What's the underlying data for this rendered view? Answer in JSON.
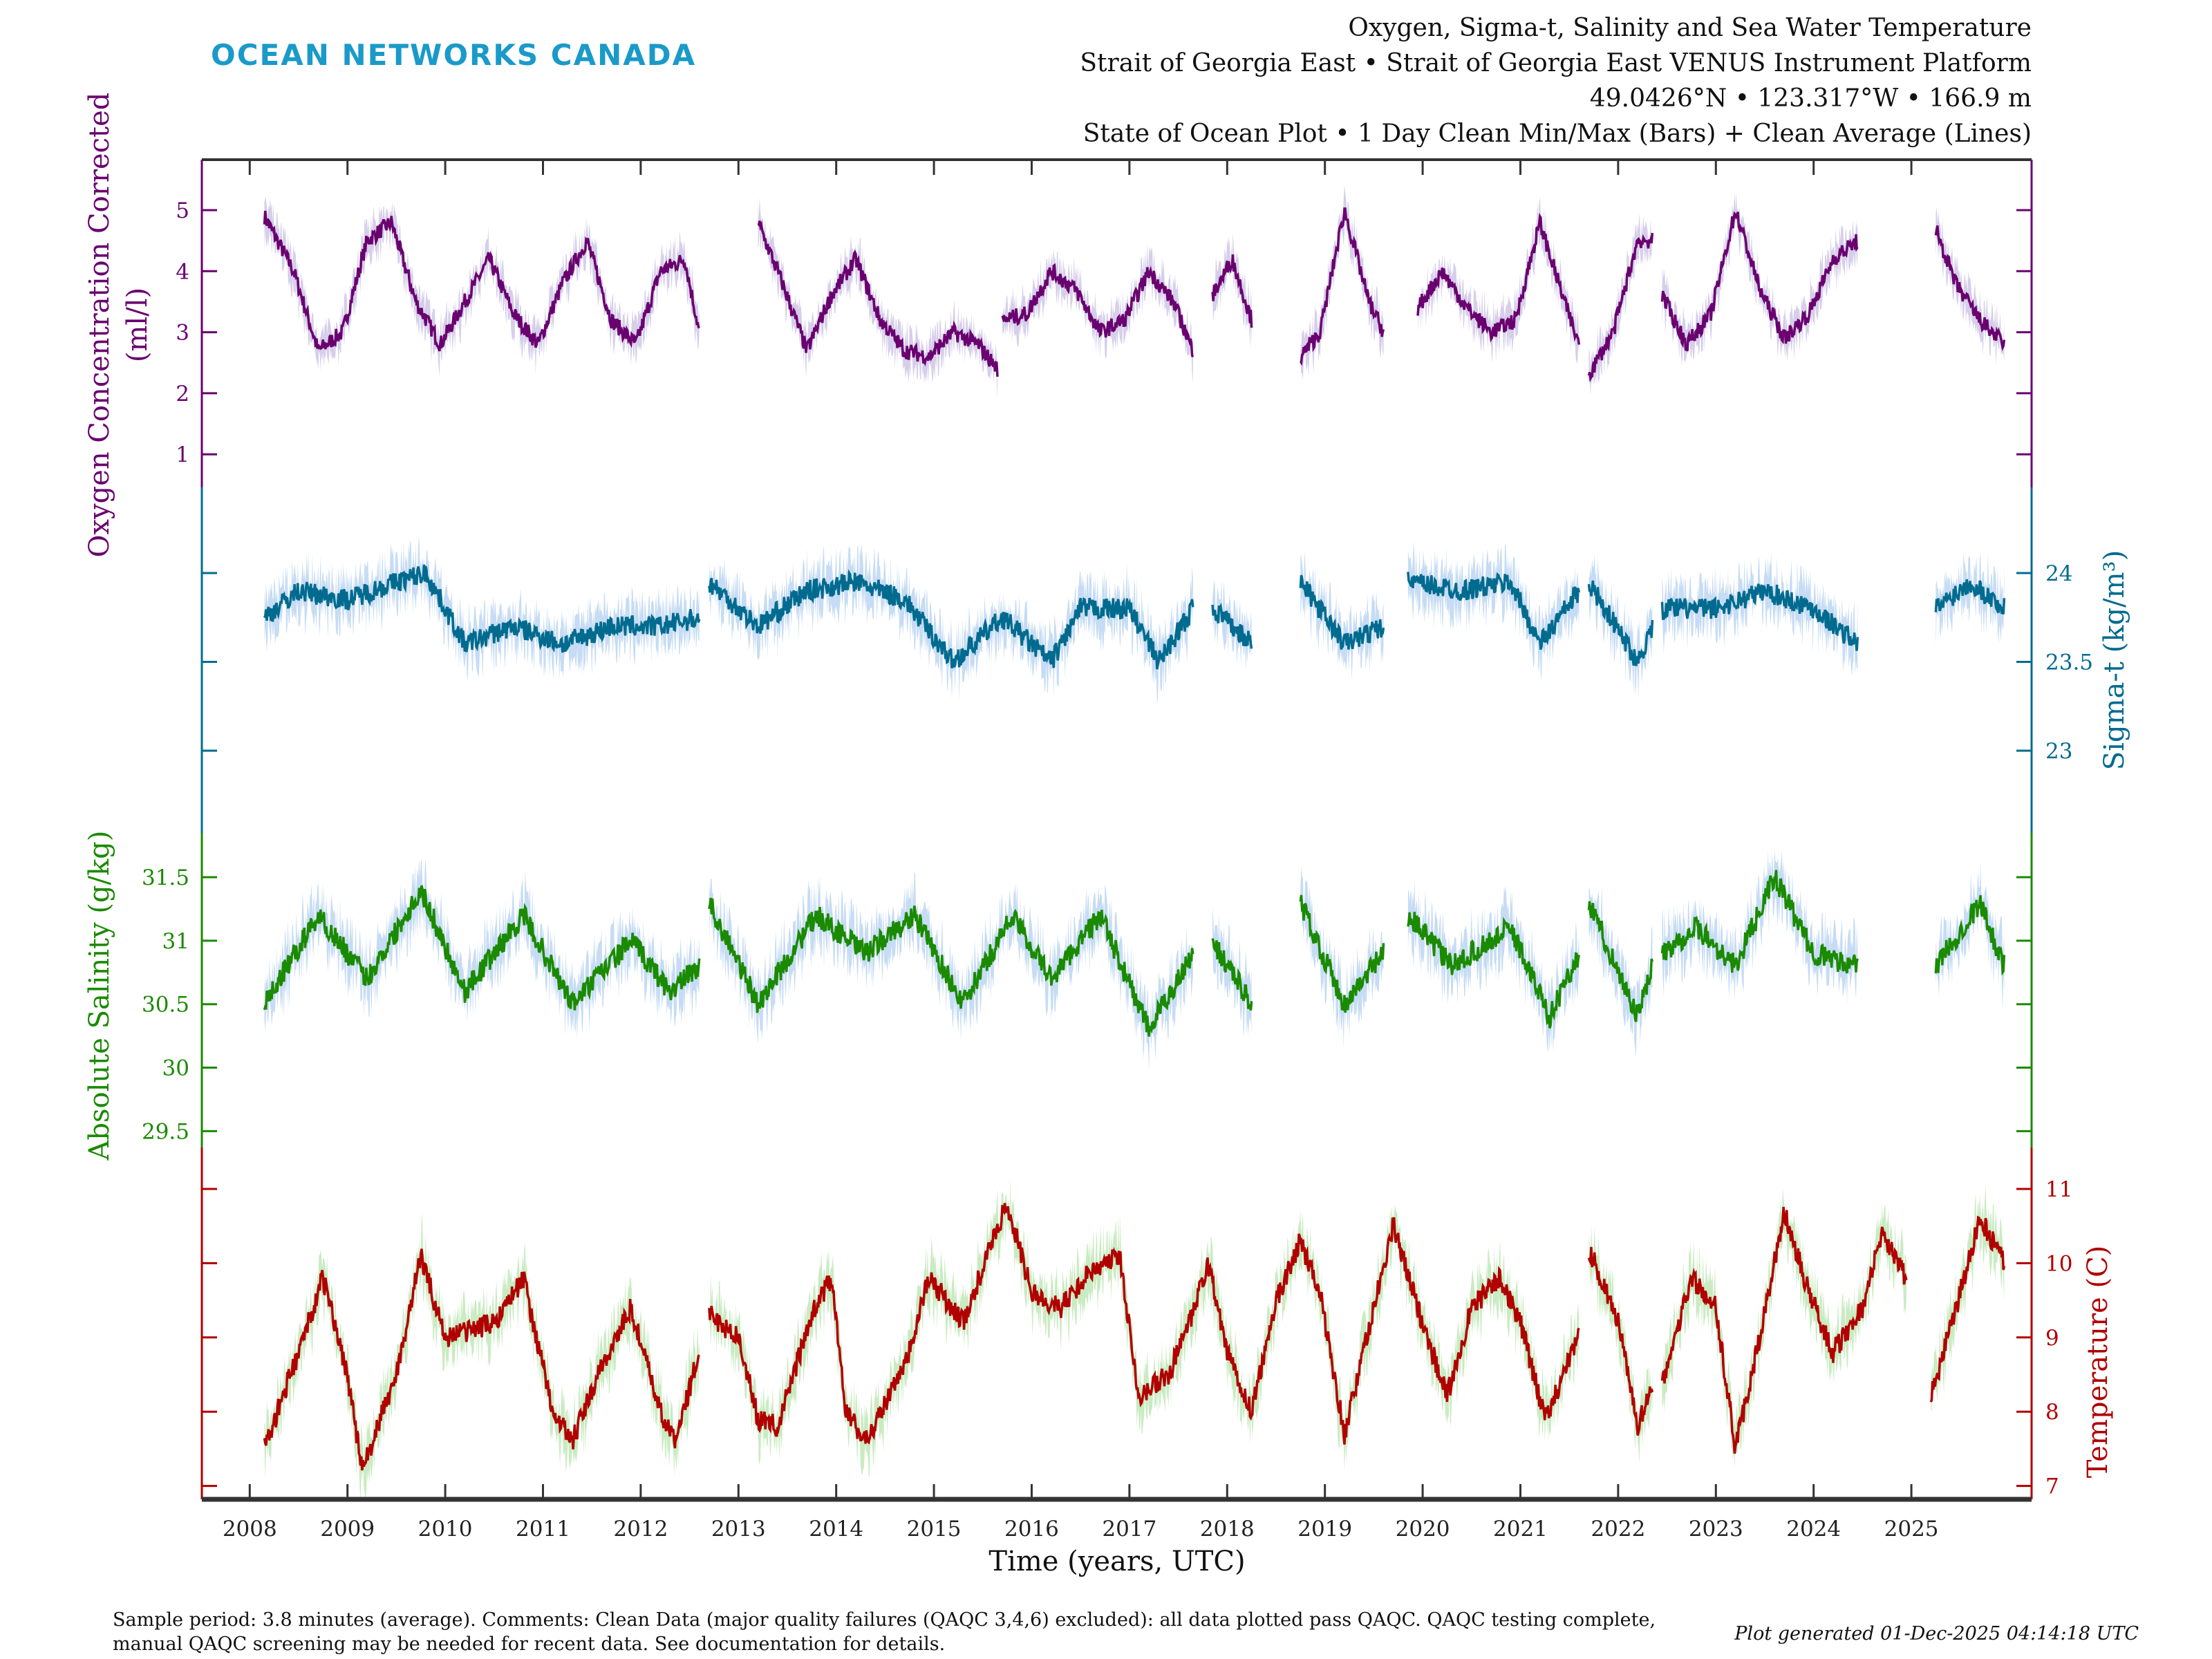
{
  "logo": "OCEAN NETWORKS CANADA",
  "title_lines": [
    "Oxygen, Sigma-t, Salinity and Sea Water Temperature",
    "Strait of Georgia East • Strait of Georgia East VENUS Instrument Platform",
    "49.0426°N • 123.317°W • 166.9 m",
    "State of Ocean Plot • 1 Day Clean Min/Max (Bars) + Clean Average (Lines)"
  ],
  "footer": {
    "line1": "Sample period: 3.8 minutes (average). Comments: Clean Data (major quality failures (QAQC 3,4,6) excluded): all data plotted pass QAQC. QAQC testing complete,",
    "line2": "manual QAQC screening may be needed for recent data. See documentation for details.",
    "generated": "Plot generated 01-Dec-2025 04:14:18 UTC"
  },
  "chart_data": {
    "type": "line",
    "xlabel": "Time (years, UTC)",
    "xlim": [
      2007.51,
      2026.23
    ],
    "xticks": [
      "2008",
      "2009",
      "2010",
      "2011",
      "2012",
      "2013",
      "2014",
      "2015",
      "2016",
      "2017",
      "2018",
      "2019",
      "2020",
      "2021",
      "2022",
      "2023",
      "2024",
      "2025"
    ],
    "grid": false,
    "panels": [
      {
        "name": "oxygen",
        "ylabel": [
          "Oxygen Concentration Corrected",
          "(ml/l)"
        ],
        "axis_side": "left",
        "color": "#6a006f",
        "band_color": "#cfc6e6",
        "yticks": [
          "1",
          "2",
          "3",
          "4",
          "5"
        ],
        "segments": [
          [
            [
              2008.15,
              4.9
            ],
            [
              2008.45,
              4.0
            ],
            [
              2008.7,
              2.7
            ],
            [
              2008.95,
              3.0
            ],
            [
              2009.2,
              4.5
            ],
            [
              2009.45,
              4.8
            ],
            [
              2009.7,
              3.5
            ],
            [
              2009.95,
              2.8
            ],
            [
              2010.2,
              3.5
            ],
            [
              2010.45,
              4.2
            ],
            [
              2010.7,
              3.3
            ],
            [
              2010.95,
              2.8
            ],
            [
              2011.2,
              3.8
            ],
            [
              2011.45,
              4.5
            ],
            [
              2011.7,
              3.2
            ],
            [
              2011.95,
              2.8
            ],
            [
              2012.2,
              4.0
            ],
            [
              2012.45,
              4.2
            ],
            [
              2012.6,
              3.0
            ]
          ],
          [
            [
              2013.2,
              4.8
            ],
            [
              2013.45,
              3.8
            ],
            [
              2013.7,
              2.7
            ],
            [
              2013.95,
              3.6
            ],
            [
              2014.2,
              4.2
            ],
            [
              2014.45,
              3.2
            ],
            [
              2014.7,
              2.7
            ],
            [
              2014.95,
              2.6
            ],
            [
              2015.2,
              3.0
            ],
            [
              2015.45,
              2.8
            ],
            [
              2015.65,
              2.4
            ]
          ],
          [
            [
              2015.7,
              3.2
            ],
            [
              2015.95,
              3.3
            ],
            [
              2016.2,
              4.0
            ],
            [
              2016.45,
              3.7
            ],
            [
              2016.7,
              3.0
            ],
            [
              2016.95,
              3.2
            ],
            [
              2017.2,
              4.0
            ],
            [
              2017.45,
              3.5
            ],
            [
              2017.65,
              2.7
            ]
          ],
          [
            [
              2017.85,
              3.6
            ],
            [
              2018.05,
              4.2
            ],
            [
              2018.25,
              3.2
            ]
          ],
          [
            [
              2018.75,
              2.6
            ],
            [
              2018.95,
              3.0
            ],
            [
              2019.2,
              5.0
            ],
            [
              2019.45,
              3.5
            ],
            [
              2019.6,
              3.0
            ]
          ],
          [
            [
              2019.95,
              3.4
            ],
            [
              2020.2,
              4.0
            ],
            [
              2020.45,
              3.4
            ],
            [
              2020.7,
              3.0
            ],
            [
              2020.95,
              3.2
            ],
            [
              2021.2,
              4.8
            ],
            [
              2021.45,
              3.5
            ],
            [
              2021.6,
              2.8
            ]
          ],
          [
            [
              2021.7,
              2.3
            ],
            [
              2021.95,
              3.0
            ],
            [
              2022.2,
              4.5
            ],
            [
              2022.35,
              4.5
            ]
          ],
          [
            [
              2022.45,
              3.6
            ],
            [
              2022.7,
              2.8
            ],
            [
              2022.95,
              3.3
            ],
            [
              2023.2,
              5.0
            ],
            [
              2023.45,
              3.7
            ],
            [
              2023.7,
              2.9
            ],
            [
              2023.95,
              3.3
            ],
            [
              2024.2,
              4.2
            ],
            [
              2024.45,
              4.5
            ]
          ],
          [
            [
              2025.25,
              4.7
            ],
            [
              2025.45,
              3.8
            ],
            [
              2025.7,
              3.2
            ],
            [
              2025.95,
              2.8
            ]
          ]
        ]
      },
      {
        "name": "sigma-t",
        "ylabel": [
          "Sigma-t (kg/m³)"
        ],
        "axis_side": "right",
        "color": "#006b8f",
        "band_color": "#bcd6f2",
        "yticks": [
          "23",
          "23.5",
          "24"
        ],
        "segments": [
          [
            [
              2008.15,
              23.75
            ],
            [
              2008.5,
              23.9
            ],
            [
              2009.0,
              23.85
            ],
            [
              2009.5,
              23.95
            ],
            [
              2009.8,
              24.0
            ],
            [
              2010.2,
              23.6
            ],
            [
              2010.7,
              23.7
            ],
            [
              2011.2,
              23.6
            ],
            [
              2011.7,
              23.7
            ],
            [
              2012.2,
              23.7
            ],
            [
              2012.6,
              23.75
            ]
          ],
          [
            [
              2012.7,
              23.95
            ],
            [
              2013.2,
              23.7
            ],
            [
              2013.7,
              23.9
            ],
            [
              2014.2,
              23.95
            ],
            [
              2014.7,
              23.85
            ],
            [
              2015.2,
              23.5
            ],
            [
              2015.7,
              23.75
            ],
            [
              2016.2,
              23.5
            ],
            [
              2016.5,
              23.8
            ],
            [
              2017.0,
              23.8
            ],
            [
              2017.3,
              23.5
            ],
            [
              2017.65,
              23.8
            ]
          ],
          [
            [
              2017.85,
              23.8
            ],
            [
              2018.25,
              23.6
            ]
          ],
          [
            [
              2018.75,
              23.95
            ],
            [
              2019.2,
              23.6
            ],
            [
              2019.6,
              23.7
            ]
          ],
          [
            [
              2019.85,
              23.95
            ],
            [
              2020.4,
              23.9
            ],
            [
              2020.9,
              23.95
            ],
            [
              2021.2,
              23.6
            ],
            [
              2021.6,
              23.9
            ]
          ],
          [
            [
              2021.7,
              23.95
            ],
            [
              2022.2,
              23.5
            ],
            [
              2022.35,
              23.7
            ]
          ],
          [
            [
              2022.45,
              23.8
            ],
            [
              2023.0,
              23.8
            ],
            [
              2023.5,
              23.9
            ],
            [
              2024.0,
              23.8
            ],
            [
              2024.45,
              23.6
            ]
          ],
          [
            [
              2025.25,
              23.8
            ],
            [
              2025.6,
              23.95
            ],
            [
              2025.95,
              23.8
            ]
          ]
        ]
      },
      {
        "name": "salinity",
        "ylabel": [
          "Absolute Salinity (g/kg)"
        ],
        "axis_side": "left",
        "color": "#1a8a00",
        "band_color": "#bcd6f2",
        "yticks": [
          "29.5",
          "30",
          "30.5",
          "31",
          "31.5"
        ],
        "segments": [
          [
            [
              2008.15,
              30.5
            ],
            [
              2008.7,
              31.2
            ],
            [
              2009.2,
              30.7
            ],
            [
              2009.75,
              31.4
            ],
            [
              2010.2,
              30.6
            ],
            [
              2010.8,
              31.2
            ],
            [
              2011.3,
              30.5
            ],
            [
              2011.9,
              31.0
            ],
            [
              2012.3,
              30.6
            ],
            [
              2012.6,
              30.8
            ]
          ],
          [
            [
              2012.7,
              31.3
            ],
            [
              2013.2,
              30.5
            ],
            [
              2013.8,
              31.2
            ],
            [
              2014.3,
              30.9
            ],
            [
              2014.8,
              31.2
            ],
            [
              2015.3,
              30.5
            ],
            [
              2015.8,
              31.2
            ],
            [
              2016.2,
              30.7
            ],
            [
              2016.7,
              31.2
            ],
            [
              2017.2,
              30.3
            ],
            [
              2017.65,
              30.9
            ]
          ],
          [
            [
              2017.85,
              31.0
            ],
            [
              2018.25,
              30.5
            ]
          ],
          [
            [
              2018.75,
              31.3
            ],
            [
              2019.2,
              30.5
            ],
            [
              2019.6,
              30.9
            ]
          ],
          [
            [
              2019.85,
              31.2
            ],
            [
              2020.3,
              30.8
            ],
            [
              2020.7,
              31.0
            ],
            [
              2020.9,
              31.1
            ],
            [
              2021.3,
              30.4
            ],
            [
              2021.6,
              30.9
            ]
          ],
          [
            [
              2021.7,
              31.3
            ],
            [
              2022.2,
              30.4
            ],
            [
              2022.35,
              30.8
            ]
          ],
          [
            [
              2022.45,
              30.9
            ],
            [
              2022.8,
              31.1
            ],
            [
              2023.2,
              30.8
            ],
            [
              2023.6,
              31.5
            ],
            [
              2024.0,
              30.9
            ],
            [
              2024.45,
              30.8
            ]
          ],
          [
            [
              2025.25,
              30.8
            ],
            [
              2025.7,
              31.3
            ],
            [
              2025.95,
              30.8
            ]
          ]
        ]
      },
      {
        "name": "temperature",
        "ylabel": [
          "Temperature (C)"
        ],
        "axis_side": "right",
        "color": "#b00000",
        "band_color": "#bfe8b6",
        "yticks": [
          "7",
          "8",
          "9",
          "10",
          "11"
        ],
        "segments": [
          [
            [
              2008.15,
              7.5
            ],
            [
              2008.5,
              8.8
            ],
            [
              2008.75,
              9.8
            ],
            [
              2009.0,
              8.5
            ],
            [
              2009.15,
              7.2
            ],
            [
              2009.5,
              8.5
            ],
            [
              2009.75,
              10.1
            ],
            [
              2010.0,
              9.0
            ],
            [
              2010.5,
              9.2
            ],
            [
              2010.8,
              9.8
            ],
            [
              2011.1,
              8.0
            ],
            [
              2011.3,
              7.6
            ],
            [
              2011.6,
              8.6
            ],
            [
              2011.9,
              9.4
            ],
            [
              2012.2,
              8.0
            ],
            [
              2012.35,
              7.6
            ],
            [
              2012.6,
              8.8
            ]
          ],
          [
            [
              2012.7,
              9.3
            ],
            [
              2013.0,
              9.0
            ],
            [
              2013.2,
              7.9
            ],
            [
              2013.4,
              7.8
            ],
            [
              2013.75,
              9.3
            ],
            [
              2013.95,
              9.8
            ],
            [
              2014.1,
              8.0
            ],
            [
              2014.3,
              7.6
            ],
            [
              2014.7,
              8.6
            ],
            [
              2014.95,
              9.8
            ],
            [
              2015.3,
              9.2
            ],
            [
              2015.6,
              10.3
            ],
            [
              2015.75,
              10.8
            ],
            [
              2016.0,
              9.6
            ],
            [
              2016.3,
              9.4
            ],
            [
              2016.6,
              9.9
            ],
            [
              2016.9,
              10.1
            ],
            [
              2017.1,
              8.2
            ],
            [
              2017.4,
              8.5
            ],
            [
              2017.65,
              9.3
            ],
            [
              2017.8,
              10.0
            ],
            [
              2018.0,
              8.8
            ],
            [
              2018.25,
              8.0
            ],
            [
              2018.5,
              9.5
            ],
            [
              2018.75,
              10.3
            ],
            [
              2018.95,
              9.6
            ],
            [
              2019.2,
              7.7
            ],
            [
              2019.5,
              9.4
            ],
            [
              2019.7,
              10.5
            ],
            [
              2019.95,
              9.4
            ],
            [
              2020.25,
              8.2
            ],
            [
              2020.5,
              9.4
            ],
            [
              2020.8,
              9.8
            ],
            [
              2021.0,
              9.2
            ],
            [
              2021.25,
              7.9
            ],
            [
              2021.6,
              9.0
            ]
          ],
          [
            [
              2021.7,
              10.2
            ],
            [
              2022.0,
              9.2
            ],
            [
              2022.2,
              7.8
            ],
            [
              2022.35,
              8.3
            ]
          ],
          [
            [
              2022.45,
              8.4
            ],
            [
              2022.75,
              9.8
            ],
            [
              2023.0,
              9.4
            ],
            [
              2023.2,
              7.5
            ],
            [
              2023.45,
              9.0
            ],
            [
              2023.7,
              10.7
            ],
            [
              2023.95,
              9.6
            ],
            [
              2024.2,
              8.8
            ],
            [
              2024.5,
              9.4
            ],
            [
              2024.7,
              10.4
            ],
            [
              2024.95,
              9.8
            ]
          ],
          [
            [
              2025.2,
              8.2
            ],
            [
              2025.5,
              9.6
            ],
            [
              2025.7,
              10.6
            ],
            [
              2025.95,
              10.0
            ]
          ]
        ]
      }
    ]
  }
}
